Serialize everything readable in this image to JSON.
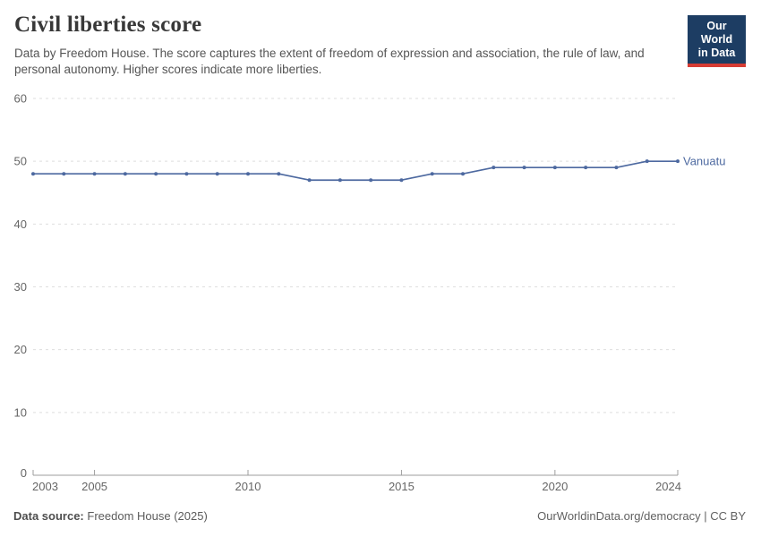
{
  "header": {
    "title": "Civil liberties score",
    "subtitle": "Data by Freedom House. The score captures the extent of freedom of expression and association, the rule of law, and personal autonomy. Higher scores indicate more liberties."
  },
  "logo": {
    "line1": "Our World",
    "line2": "in Data"
  },
  "chart_data": {
    "type": "line",
    "title": "Civil liberties score",
    "xlabel": "",
    "ylabel": "",
    "xlim": [
      2003,
      2024
    ],
    "ylim": [
      0,
      60
    ],
    "grid": "horizontal-dashed",
    "legend_position": "end-of-line-label",
    "xticks": [
      2003,
      2005,
      2010,
      2015,
      2020,
      2024
    ],
    "yticks": [
      0,
      10,
      20,
      30,
      40,
      50,
      60
    ],
    "series": [
      {
        "name": "Vanuatu",
        "x": [
          2003,
          2004,
          2005,
          2006,
          2007,
          2008,
          2009,
          2010,
          2011,
          2012,
          2013,
          2014,
          2015,
          2016,
          2017,
          2018,
          2019,
          2020,
          2021,
          2022,
          2023,
          2024
        ],
        "values": [
          48,
          48,
          48,
          48,
          48,
          48,
          48,
          48,
          48,
          47,
          47,
          47,
          47,
          48,
          48,
          49,
          49,
          49,
          49,
          49,
          50,
          50
        ]
      }
    ]
  },
  "footer": {
    "source_label": "Data source:",
    "source_value": "Freedom House (2025)",
    "credit": "OurWorldinData.org/democracy | CC BY"
  },
  "colors": {
    "line": "#4d69a0",
    "grid": "#dedede",
    "axis": "#9e9e9e",
    "tick_label": "#666666",
    "logo_navy": "#1d3d63",
    "logo_red": "#d73c34"
  }
}
